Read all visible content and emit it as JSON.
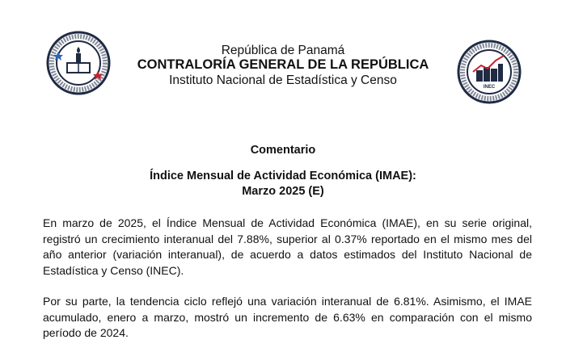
{
  "header": {
    "country": "República de Panamá",
    "institution": "CONTRALORÍA GENERAL DE LA REPÚBLICA",
    "department": "Instituto Nacional de Estadística y Censo",
    "left_logo": {
      "text_top": "CONTRALORÍA GENERAL",
      "text_bottom": "REPÚBLICA DE PANAMÁ"
    },
    "right_logo": {
      "text_top": "INSTITUTO NACIONAL DE ESTADÍSTICA Y CENSO",
      "text_mid": "INEC",
      "text_bottom": "PANAMÁ"
    }
  },
  "document": {
    "section": "Comentario",
    "title_line1": "Índice Mensual de Actividad Económica (IMAE):",
    "title_line2": "Marzo 2025 (E)",
    "paragraphs": [
      "En marzo de 2025, el Índice Mensual de Actividad Económica (IMAE), en su serie original, registró un crecimiento interanual del 7.88%, superior al 0.37% reportado en el mismo mes del año anterior (variación interanual), de acuerdo a datos estimados del Instituto Nacional de Estadística y Censo (INEC).",
      "Por su parte, la tendencia ciclo reflejó una variación interanual de 6.81%. Asimismo, el IMAE acumulado, enero a marzo, mostró un incremento de 6.63% en comparación con el mismo período de 2024."
    ]
  },
  "colors": {
    "navy": "#1f2a44",
    "red": "#c8202f",
    "blue": "#2b63b8"
  }
}
